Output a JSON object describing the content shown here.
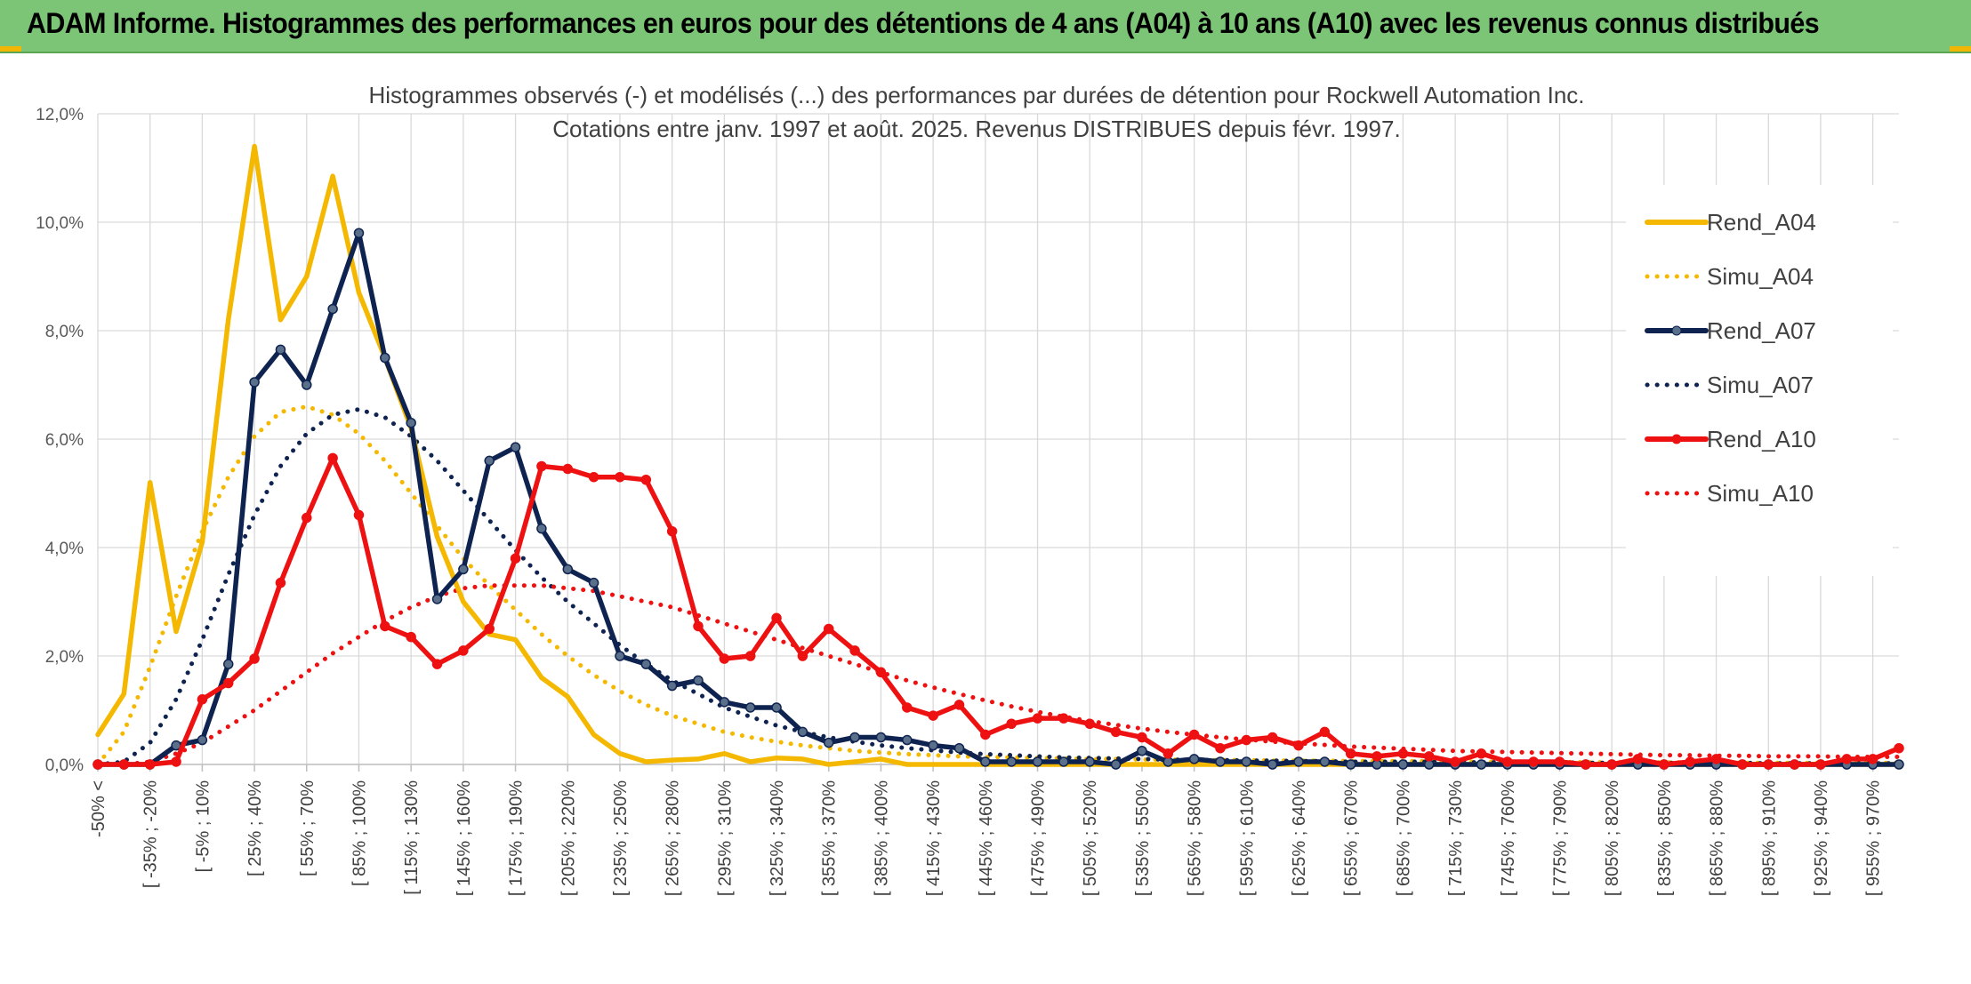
{
  "header": {
    "title": "ADAM Informe. Histogrammes des performances en euros pour des détentions de 4 ans (A04) à 10 ans (A10) avec les revenus connus distribués"
  },
  "chart_data": {
    "type": "line",
    "title": "Histogrammes observés (-) et modélisés (...) des performances par durées de détention pour Rockwell Automation Inc.",
    "subtitle": "Cotations entre janv. 1997 et août. 2025. Revenus DISTRIBUES depuis févr. 1997.",
    "xlabel": "",
    "ylabel": "",
    "ylim": [
      0,
      12
    ],
    "y_ticks": [
      "0,0%",
      "2,0%",
      "4,0%",
      "6,0%",
      "8,0%",
      "10,0%",
      "12,0%"
    ],
    "grid": true,
    "legend_position": "right",
    "x_tick_labels": [
      "-50% <",
      "[ -35% ; -20%",
      "[ -5% ; 10%",
      "[ 25% ; 40%",
      "[ 55% ; 70%",
      "[ 85% ; 100%",
      "[ 115% ; 130%",
      "[ 145% ; 160%",
      "[ 175% ; 190%",
      "[ 205% ; 220%",
      "[ 235% ; 250%",
      "[ 265% ; 280%",
      "[ 295% ; 310%",
      "[ 325% ; 340%",
      "[ 355% ; 370%",
      "[ 385% ; 400%",
      "[ 415% ; 430%",
      "[ 445% ; 460%",
      "[ 475% ; 490%",
      "[ 505% ; 520%",
      "[ 535% ; 550%",
      "[ 565% ; 580%",
      "[ 595% ; 610%",
      "[ 625% ; 640%",
      "[ 655% ; 670%",
      "[ 685% ; 700%",
      "[ 715% ; 730%",
      "[ 745% ; 760%",
      "[ 775% ; 790%",
      "[ 805% ; 820%",
      "[ 835% ; 850%",
      "[ 865% ; 880%",
      "[ 895% ; 910%",
      "[ 925% ; 940%",
      "[ 955% ; 970%"
    ],
    "series": [
      {
        "name": "Rend_A04",
        "color": "#f5b800",
        "style": "solid",
        "markers": false,
        "values": [
          0.55,
          1.3,
          5.2,
          2.45,
          4.1,
          8.2,
          11.4,
          8.2,
          9.0,
          10.85,
          8.7,
          7.5,
          6.2,
          4.2,
          3.0,
          2.4,
          2.3,
          1.6,
          1.25,
          0.55,
          0.2,
          0.05,
          0.08,
          0.1,
          0.2,
          0.05,
          0.12,
          0.1,
          0.0,
          0.05,
          0.1,
          0.0,
          0.0,
          0.0,
          0.0,
          0.0,
          0.0,
          0.0,
          0.0,
          0.0,
          0.0,
          0.0,
          0.0,
          0.0,
          0.0,
          0.0,
          0.0,
          0.0,
          0.0,
          0.0,
          0.0,
          0.0,
          0.0,
          0.0,
          0.0,
          0.0,
          0.0,
          0.0,
          0.0,
          0.0,
          0.0,
          0.0,
          0.0,
          0.0,
          0.0,
          0.0,
          0.0,
          0.0,
          0.0,
          0.0
        ]
      },
      {
        "name": "Simu_A04",
        "color": "#f5b800",
        "style": "dotted",
        "markers": false,
        "values": [
          0.0,
          0.6,
          1.8,
          3.1,
          4.3,
          5.3,
          6.05,
          6.5,
          6.6,
          6.45,
          6.1,
          5.6,
          5.0,
          4.4,
          3.8,
          3.3,
          2.85,
          2.4,
          2.0,
          1.65,
          1.35,
          1.1,
          0.9,
          0.75,
          0.6,
          0.5,
          0.42,
          0.35,
          0.3,
          0.25,
          0.22,
          0.19,
          0.17,
          0.15,
          0.14,
          0.13,
          0.12,
          0.11,
          0.1,
          0.1,
          0.09,
          0.09,
          0.08,
          0.08,
          0.08,
          0.07,
          0.07,
          0.07,
          0.06,
          0.06,
          0.06,
          0.06,
          0.05,
          0.05,
          0.05,
          0.05,
          0.05,
          0.04,
          0.04,
          0.04,
          0.04,
          0.04,
          0.04,
          0.03,
          0.03,
          0.03,
          0.03,
          0.03,
          0.03,
          0.03
        ]
      },
      {
        "name": "Rend_A07",
        "color": "#0f2350",
        "style": "solid",
        "markers": true,
        "values": [
          0.0,
          0.0,
          0.0,
          0.35,
          0.45,
          1.85,
          7.05,
          7.65,
          7.0,
          8.4,
          9.8,
          7.5,
          6.3,
          3.05,
          3.6,
          5.6,
          5.85,
          4.35,
          3.6,
          3.35,
          2.0,
          1.85,
          1.45,
          1.55,
          1.15,
          1.05,
          1.05,
          0.6,
          0.4,
          0.5,
          0.5,
          0.45,
          0.35,
          0.3,
          0.05,
          0.05,
          0.05,
          0.05,
          0.05,
          0.0,
          0.25,
          0.05,
          0.1,
          0.05,
          0.05,
          0.0,
          0.05,
          0.05,
          0.0,
          0.0,
          0.0,
          0.0,
          0.0,
          0.0,
          0.0,
          0.0,
          0.0,
          0.0,
          0.0,
          0.0,
          0.0,
          0.0,
          0.0,
          0.0,
          0.0,
          0.0,
          0.0,
          0.0,
          0.0,
          0.0
        ]
      },
      {
        "name": "Simu_A07",
        "color": "#0f2350",
        "style": "dotted",
        "markers": false,
        "values": [
          0.0,
          0.05,
          0.4,
          1.2,
          2.3,
          3.5,
          4.6,
          5.5,
          6.1,
          6.45,
          6.55,
          6.4,
          6.05,
          5.6,
          5.05,
          4.5,
          3.95,
          3.45,
          3.0,
          2.6,
          2.2,
          1.85,
          1.55,
          1.3,
          1.05,
          0.88,
          0.72,
          0.6,
          0.5,
          0.42,
          0.35,
          0.3,
          0.26,
          0.22,
          0.19,
          0.17,
          0.15,
          0.13,
          0.12,
          0.11,
          0.1,
          0.09,
          0.08,
          0.08,
          0.07,
          0.07,
          0.06,
          0.06,
          0.05,
          0.05,
          0.05,
          0.05,
          0.04,
          0.04,
          0.04,
          0.04,
          0.04,
          0.03,
          0.03,
          0.03,
          0.03,
          0.03,
          0.03,
          0.03,
          0.02,
          0.02,
          0.02,
          0.02,
          0.02,
          0.02
        ]
      },
      {
        "name": "Rend_A10",
        "color": "#ee1111",
        "style": "solid",
        "markers": true,
        "values": [
          0.0,
          0.0,
          0.0,
          0.05,
          1.2,
          1.5,
          1.95,
          3.35,
          4.55,
          5.65,
          4.6,
          2.55,
          2.35,
          1.85,
          2.1,
          2.5,
          3.8,
          5.5,
          5.45,
          5.3,
          5.3,
          5.25,
          4.3,
          2.55,
          1.95,
          2.0,
          2.7,
          2.0,
          2.5,
          2.1,
          1.7,
          1.05,
          0.9,
          1.1,
          0.55,
          0.75,
          0.85,
          0.85,
          0.75,
          0.6,
          0.5,
          0.2,
          0.55,
          0.3,
          0.45,
          0.5,
          0.35,
          0.6,
          0.2,
          0.15,
          0.2,
          0.15,
          0.05,
          0.2,
          0.05,
          0.05,
          0.05,
          0.0,
          0.0,
          0.1,
          0.0,
          0.05,
          0.1,
          0.0,
          0.0,
          0.0,
          0.0,
          0.1,
          0.1,
          0.3
        ]
      },
      {
        "name": "Simu_A10",
        "color": "#ee1111",
        "style": "dotted",
        "markers": false,
        "values": [
          0.0,
          0.0,
          0.05,
          0.2,
          0.4,
          0.7,
          1.0,
          1.35,
          1.7,
          2.05,
          2.35,
          2.65,
          2.9,
          3.1,
          3.25,
          3.3,
          3.3,
          3.3,
          3.25,
          3.2,
          3.1,
          3.0,
          2.9,
          2.75,
          2.6,
          2.45,
          2.3,
          2.15,
          2.0,
          1.85,
          1.7,
          1.55,
          1.42,
          1.3,
          1.18,
          1.07,
          0.97,
          0.88,
          0.8,
          0.73,
          0.66,
          0.6,
          0.55,
          0.5,
          0.46,
          0.42,
          0.39,
          0.36,
          0.33,
          0.31,
          0.29,
          0.27,
          0.25,
          0.24,
          0.23,
          0.22,
          0.21,
          0.2,
          0.19,
          0.18,
          0.17,
          0.17,
          0.16,
          0.16,
          0.15,
          0.15,
          0.15,
          0.14,
          0.14,
          0.14
        ]
      }
    ]
  }
}
